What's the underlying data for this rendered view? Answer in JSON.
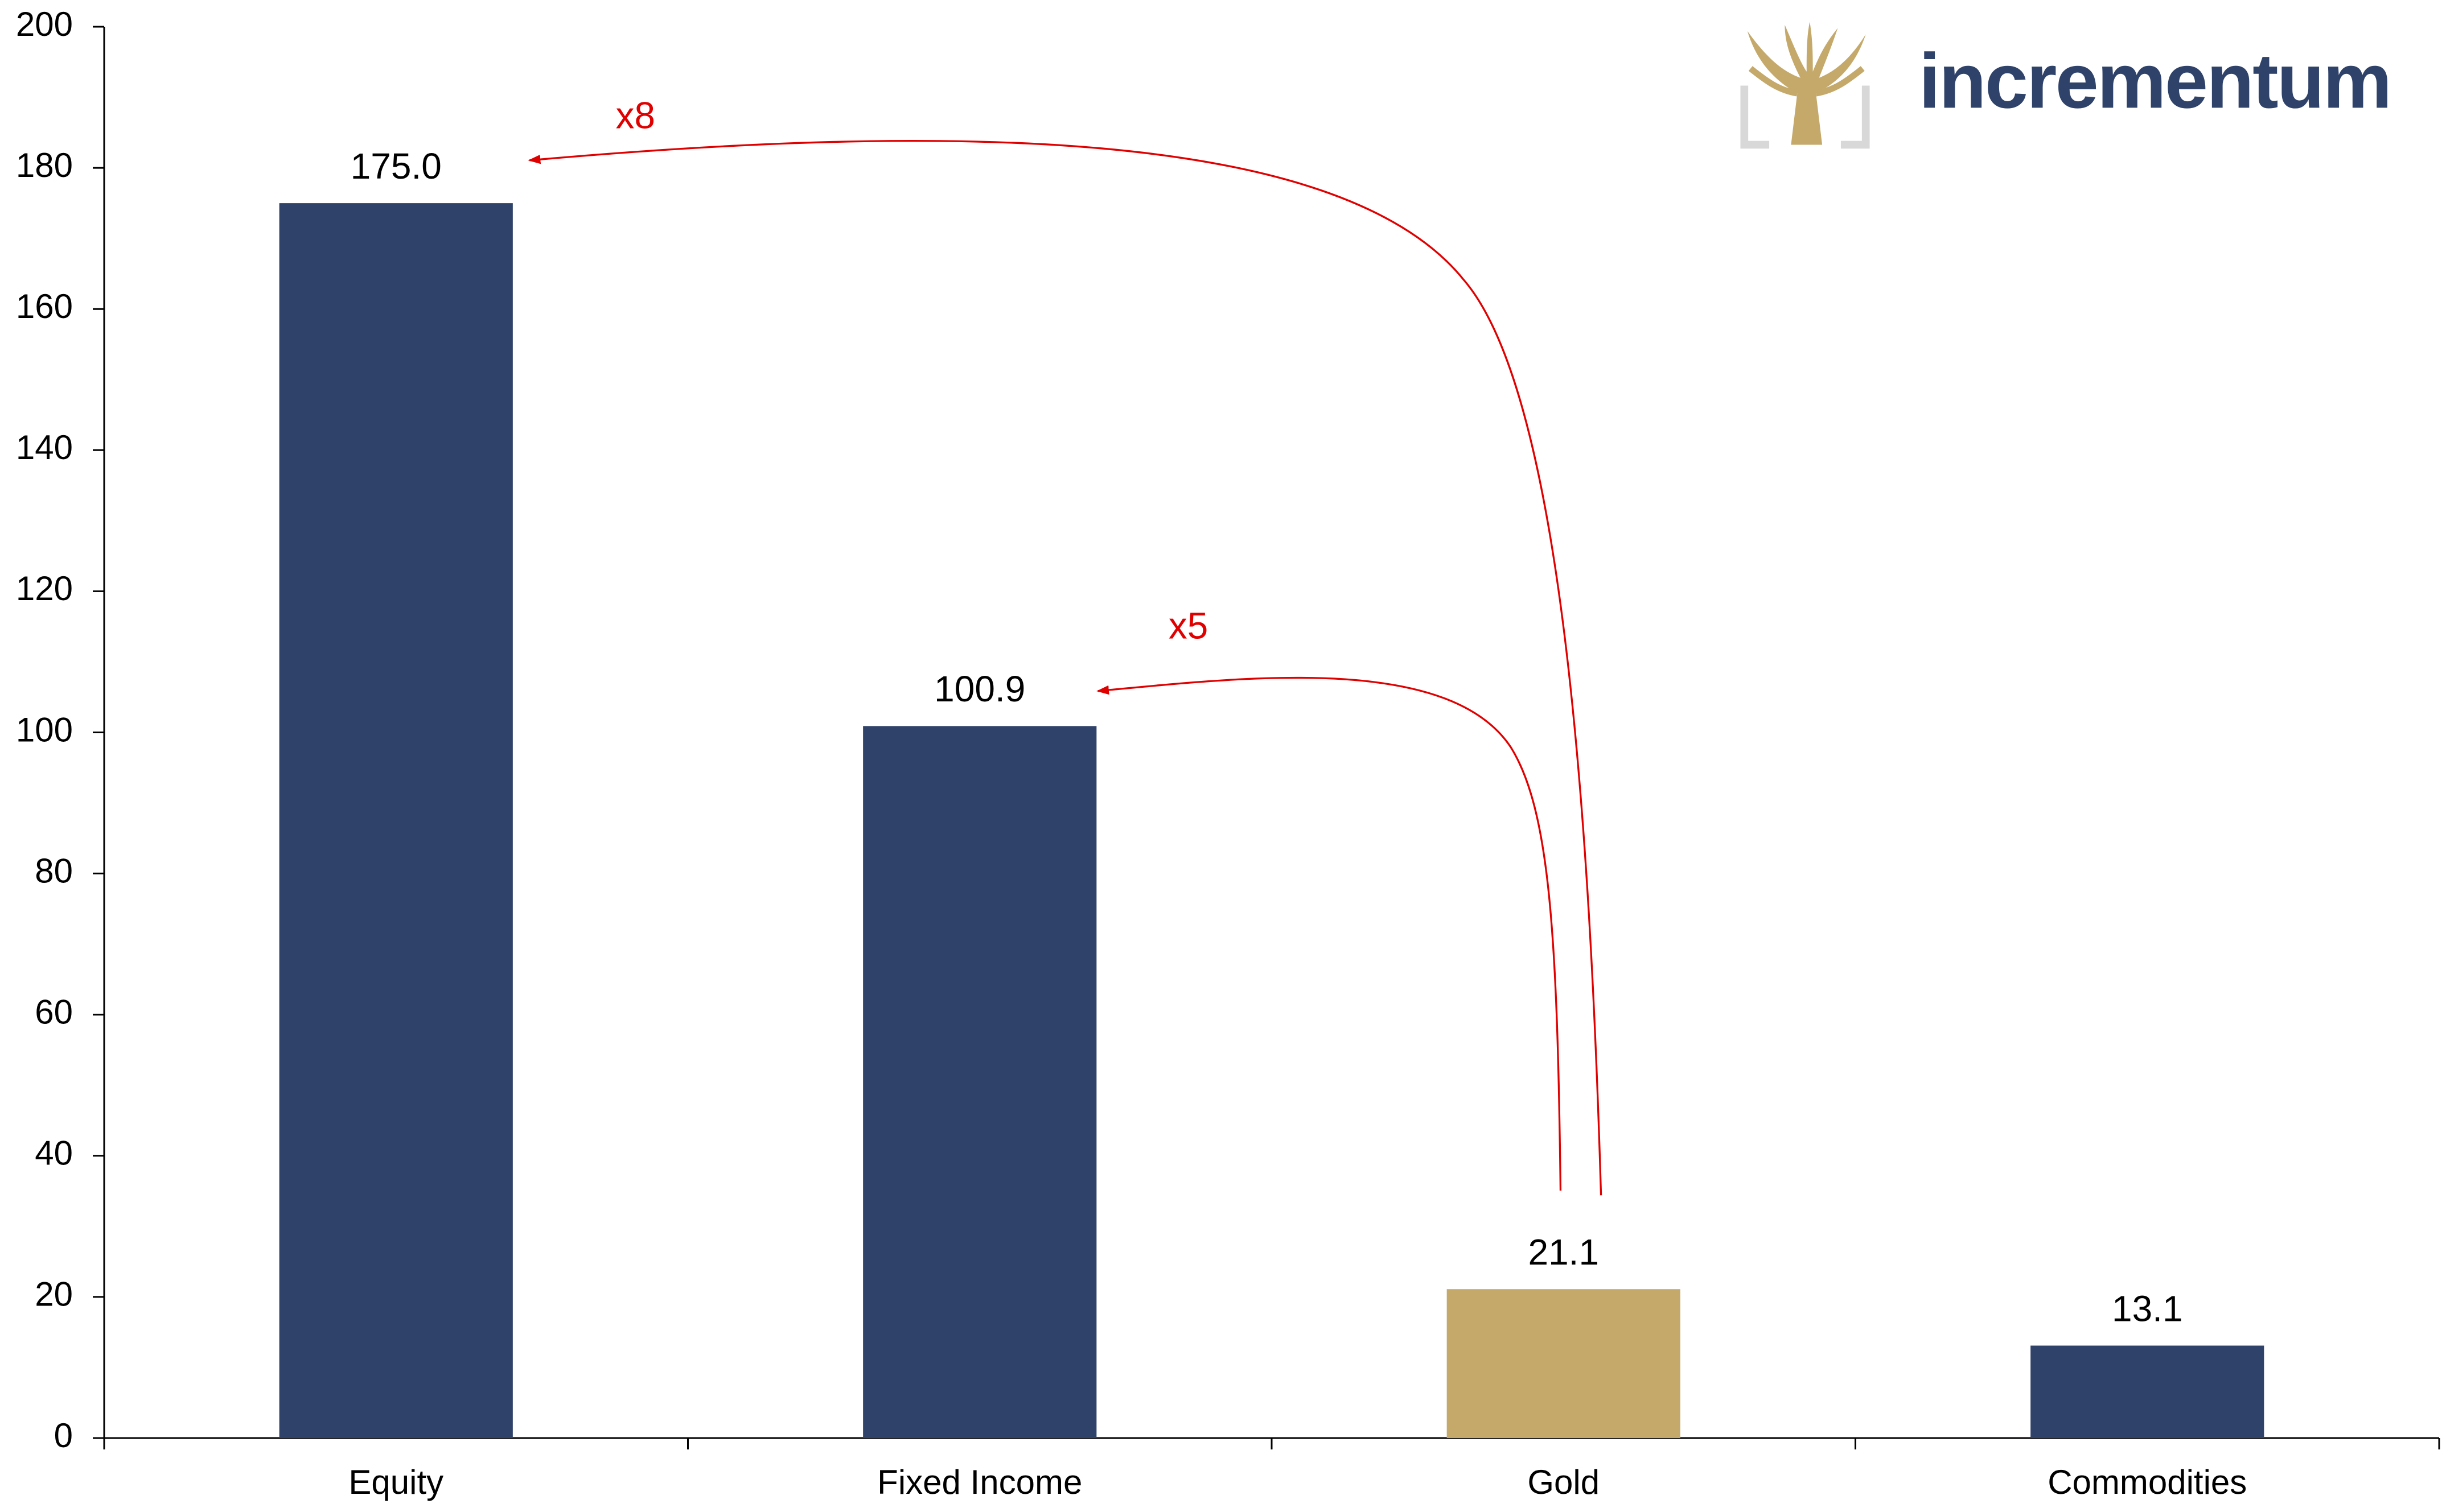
{
  "chart_data": {
    "type": "bar",
    "categories": [
      "Equity",
      "Fixed Income",
      "Gold",
      "Commodities"
    ],
    "values": [
      175.0,
      100.9,
      21.1,
      13.1
    ],
    "value_labels": [
      "175.0",
      "100.9",
      "21.1",
      "13.1"
    ],
    "colors": [
      "#2f4269",
      "#2f4269",
      "#c4a96b",
      "#2f4269"
    ],
    "ylim": [
      0,
      200
    ],
    "yticks": [
      0,
      20,
      40,
      60,
      80,
      100,
      120,
      140,
      160,
      180,
      200
    ],
    "grid": false,
    "annotations": [
      "x8",
      "x5"
    ],
    "logo": "incrementum"
  }
}
